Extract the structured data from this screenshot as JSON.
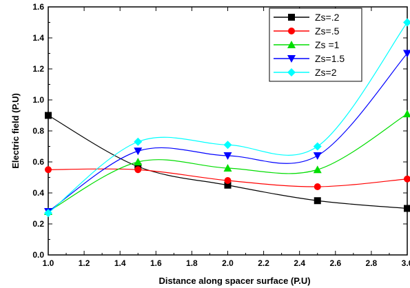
{
  "chart_data": {
    "type": "line",
    "xlabel": "Distance along spacer surface (P.U)",
    "ylabel": "Electric field (P.U)",
    "xlim": [
      1.0,
      3.0
    ],
    "ylim": [
      0.0,
      1.6
    ],
    "x_ticks": [
      "1.0",
      "1.2",
      "1.4",
      "1.6",
      "1.8",
      "2.0",
      "2.2",
      "2.4",
      "2.6",
      "2.8",
      "3.0"
    ],
    "y_ticks": [
      "0.0",
      "0.2",
      "0.4",
      "0.6",
      "0.8",
      "1.0",
      "1.2",
      "1.4",
      "1.6"
    ],
    "x": [
      1.0,
      1.5,
      2.0,
      2.5,
      3.0
    ],
    "grid": false,
    "legend_position": "top-right",
    "series": [
      {
        "name": "Zs=.2",
        "color": "#000000",
        "marker": "square",
        "values": [
          0.9,
          0.57,
          0.45,
          0.35,
          0.3
        ]
      },
      {
        "name": "Zs=.5",
        "color": "#ff0000",
        "marker": "circle",
        "values": [
          0.55,
          0.55,
          0.48,
          0.44,
          0.49
        ]
      },
      {
        "name": "Zs =1",
        "color": "#00dd00",
        "marker": "triangle-up",
        "values": [
          0.28,
          0.6,
          0.56,
          0.55,
          0.91
        ]
      },
      {
        "name": "Zs=1.5",
        "color": "#0000ff",
        "marker": "triangle-down",
        "values": [
          0.28,
          0.67,
          0.64,
          0.64,
          1.3
        ]
      },
      {
        "name": "Zs=2",
        "color": "#00ffff",
        "marker": "diamond",
        "values": [
          0.27,
          0.73,
          0.71,
          0.7,
          1.5
        ]
      }
    ]
  }
}
